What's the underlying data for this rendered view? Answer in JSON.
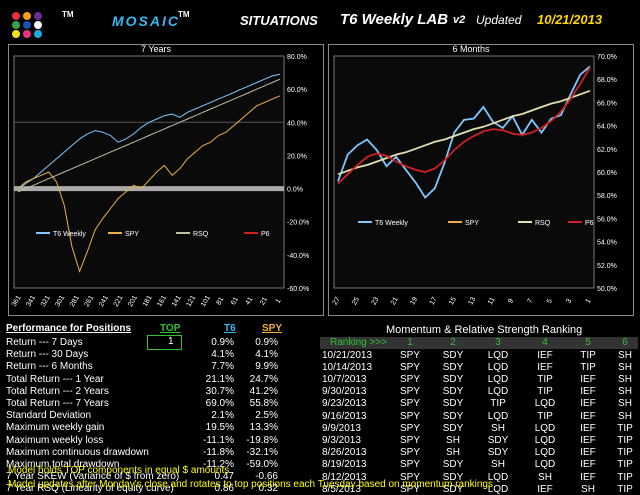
{
  "header": {
    "tm1": "TM",
    "brand": "MOSAIC",
    "tm2": "TM",
    "situations": "SITUATIONS",
    "lab": "T6 Weekly LAB",
    "version": "v2",
    "updated_label": "Updated",
    "updated_date": "10/21/2013"
  },
  "logo_dots": [
    "#e8303a",
    "#f5a01a",
    "#6a2d91",
    "#3aa04a",
    "#1f4fb0",
    "#ffffff",
    "#f2e21a",
    "#e83080",
    "#21a8e0"
  ],
  "chart_data": [
    {
      "type": "line",
      "title": "7 Years",
      "x_ticks": [
        "361",
        "341",
        "321",
        "301",
        "281",
        "261",
        "241",
        "221",
        "201",
        "181",
        "161",
        "141",
        "121",
        "101",
        "81",
        "61",
        "41",
        "21",
        "1"
      ],
      "y_ticks": [
        "80.0%",
        "60.0%",
        "40.0%",
        "20.0%",
        "0.0%",
        "-20.0%",
        "-40.0%",
        "-60.0%"
      ],
      "ylim": [
        -60,
        80
      ],
      "series": [
        {
          "name": "T6 Weekly",
          "color": "#7ec8ff",
          "values": [
            0,
            3,
            6,
            10,
            14,
            18,
            22,
            26,
            30,
            33,
            35,
            34,
            32,
            28,
            30,
            33,
            37,
            40,
            42,
            44,
            45,
            43,
            46,
            48,
            50,
            52,
            54,
            56,
            58,
            60,
            62,
            64,
            66,
            68,
            69
          ]
        },
        {
          "name": "SPY",
          "color": "#f0b040",
          "values": [
            0,
            4,
            6,
            8,
            10,
            4,
            -10,
            -35,
            -50,
            -38,
            -25,
            -18,
            -12,
            -6,
            -2,
            2,
            0,
            5,
            10,
            14,
            8,
            12,
            18,
            22,
            26,
            28,
            32,
            34,
            38,
            42,
            46,
            50,
            52,
            54,
            56
          ]
        },
        {
          "name": "RSQ",
          "color": "#c0c0a0",
          "values": [
            -2,
            0,
            2,
            4,
            6,
            8,
            10,
            12,
            14,
            16,
            18,
            20,
            22,
            24,
            26,
            28,
            30,
            32,
            34,
            36,
            38,
            40,
            42,
            44,
            46,
            48,
            50,
            52,
            54,
            56,
            58,
            60,
            62,
            64,
            66
          ]
        },
        {
          "name": "P6",
          "color": "#d02020",
          "values": []
        }
      ]
    },
    {
      "type": "line",
      "title": "6 Months",
      "x_ticks": [
        "27",
        "25",
        "23",
        "21",
        "19",
        "17",
        "15",
        "13",
        "11",
        "9",
        "7",
        "5",
        "3",
        "1"
      ],
      "y_ticks": [
        "70.0%",
        "68.0%",
        "66.0%",
        "64.0%",
        "62.0%",
        "60.0%",
        "58.0%",
        "56.0%",
        "54.0%",
        "52.0%",
        "50.0%"
      ],
      "ylim": [
        50,
        70
      ],
      "series": [
        {
          "name": "T6 Weekly",
          "color": "#7ec8ff",
          "values": [
            59.2,
            61.5,
            62.3,
            62.8,
            61.9,
            60.5,
            61.3,
            60.2,
            59.1,
            57.8,
            58.6,
            60.8,
            63.4,
            64.5,
            64.6,
            65.6,
            64.3,
            63.8,
            64.8,
            63.2,
            64.5,
            63.4,
            64.6,
            64.9,
            66.7,
            68.4,
            69.1
          ]
        },
        {
          "name": "SPY",
          "color": "#f0b040",
          "values": []
        },
        {
          "name": "RSQ",
          "color": "#e0e0b0",
          "values": [
            59.8,
            60.1,
            60.4,
            60.6,
            60.9,
            61.2,
            61.5,
            61.7,
            62.0,
            62.3,
            62.6,
            62.8,
            63.1,
            63.4,
            63.7,
            63.9,
            64.2,
            64.5,
            64.8,
            65.0,
            65.3,
            65.6,
            65.9,
            66.1,
            66.4,
            66.7,
            67.0
          ]
        },
        {
          "name": "P6",
          "color": "#d02020",
          "values": [
            59.0,
            59.8,
            60.6,
            61.3,
            61.6,
            61.4,
            60.9,
            60.5,
            60.2,
            60.0,
            60.3,
            61.0,
            61.9,
            62.6,
            63.1,
            63.5,
            63.7,
            63.6,
            63.3,
            63.2,
            63.4,
            63.8,
            64.4,
            65.2,
            66.3,
            67.6,
            69.0
          ]
        }
      ]
    }
  ],
  "performance": {
    "title": "Performance for Positions",
    "top_label": "TOP",
    "t6_label": "T6",
    "spy_label": "SPY",
    "top_value": "1",
    "rows": [
      {
        "label": "Return --- 7 Days",
        "t6": "0.9%",
        "spy": "0.9%"
      },
      {
        "label": "Return --- 30 Days",
        "t6": "4.1%",
        "spy": "4.1%"
      },
      {
        "label": "Return --- 6 Months",
        "t6": "7.7%",
        "spy": "9.9%"
      },
      {
        "label": "Total Return --- 1 Year",
        "t6": "21.1%",
        "spy": "24.7%"
      },
      {
        "label": "Total Return --- 2 Years",
        "t6": "30.7%",
        "spy": "41.2%"
      },
      {
        "label": "Total Return --- 7 Years",
        "t6": "69.0%",
        "spy": "55.8%"
      },
      {
        "label": "Standard Deviation",
        "t6": "2.1%",
        "spy": "2.5%"
      },
      {
        "label": "Maximum weekly gain",
        "t6": "19.5%",
        "spy": "13.3%"
      },
      {
        "label": "Maximum weekly loss",
        "t6": "-11.1%",
        "spy": "-19.8%"
      },
      {
        "label": "Maximum continuous drawdown",
        "t6": "-11.8%",
        "spy": "-32.1%"
      },
      {
        "label": "Maximum total drawdown",
        "t6": "-11.2%",
        "spy": "-59.0%"
      },
      {
        "label": "7 Year SKEW (Variance of $ from zero)",
        "t6": "0.47",
        "spy": "-0.66"
      },
      {
        "label": "7 Year RSQ (Linearity of equity curve)",
        "t6": "0.86",
        "spy": "0.32"
      }
    ]
  },
  "momentum": {
    "title": "Momentum & Relative Strength Ranking",
    "ranking_label": "Ranking >>>",
    "cols": [
      "1",
      "2",
      "3",
      "4",
      "5",
      "6"
    ],
    "rows": [
      {
        "date": "10/21/2013",
        "r": [
          "SPY",
          "SDY",
          "LQD",
          "IEF",
          "TIP",
          "SH"
        ]
      },
      {
        "date": "10/14/2013",
        "r": [
          "SPY",
          "SDY",
          "LQD",
          "IEF",
          "TIP",
          "SH"
        ]
      },
      {
        "date": "10/7/2013",
        "r": [
          "SPY",
          "SDY",
          "LQD",
          "TIP",
          "IEF",
          "SH"
        ]
      },
      {
        "date": "9/30/2013",
        "r": [
          "SPY",
          "SDY",
          "LQD",
          "TIP",
          "IEF",
          "SH"
        ]
      },
      {
        "date": "9/23/2013",
        "r": [
          "SPY",
          "SDY",
          "TIP",
          "LQD",
          "IEF",
          "SH"
        ]
      },
      {
        "date": "9/16/2013",
        "r": [
          "SPY",
          "SDY",
          "LQD",
          "TIP",
          "IEF",
          "SH"
        ]
      },
      {
        "date": "9/9/2013",
        "r": [
          "SPY",
          "SDY",
          "SH",
          "LQD",
          "IEF",
          "TIP"
        ]
      },
      {
        "date": "9/3/2013",
        "r": [
          "SPY",
          "SH",
          "SDY",
          "LQD",
          "IEF",
          "TIP"
        ]
      },
      {
        "date": "8/26/2013",
        "r": [
          "SPY",
          "SH",
          "SDY",
          "LQD",
          "IEF",
          "TIP"
        ]
      },
      {
        "date": "8/19/2013",
        "r": [
          "SPY",
          "SDY",
          "SH",
          "LQD",
          "IEF",
          "TIP"
        ]
      },
      {
        "date": "8/12/2013",
        "r": [
          "SPY",
          "SDY",
          "LQD",
          "SH",
          "IEF",
          "TIP"
        ]
      },
      {
        "date": "8/5/2013",
        "r": [
          "SPY",
          "SDY",
          "LQD",
          "IEF",
          "SH",
          "TIP"
        ]
      }
    ]
  },
  "footer": {
    "line1": "Model holds  TOP components in equal  $ amounts",
    "line2": "Model updates after Monday's close and rotates to top positions each Tuesday based on momentum rankings"
  }
}
